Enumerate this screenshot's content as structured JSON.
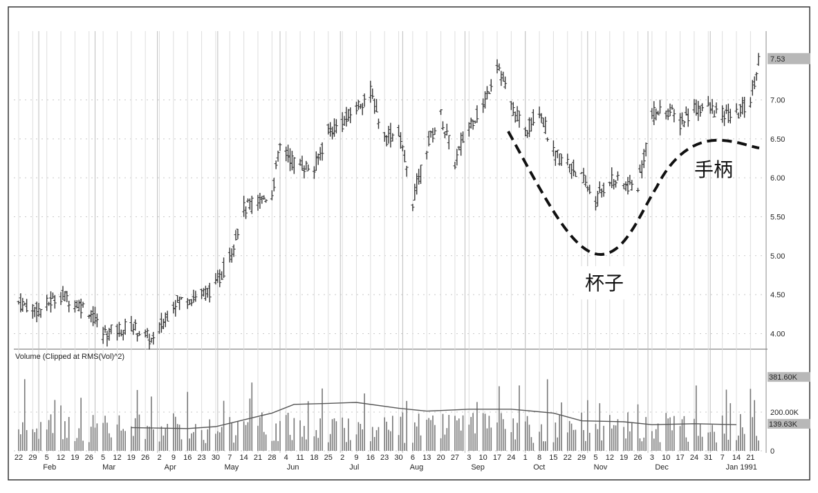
{
  "chart_data": [
    {
      "type": "ohlc",
      "title": "",
      "ylim": [
        3.8,
        7.75
      ],
      "y_ticks": [
        "4.00",
        "4.50",
        "5.00",
        "5.50",
        "6.00",
        "6.50",
        "7.00"
      ],
      "last_price_label": "7.53",
      "price_trend": [
        [
          "1990-01-22",
          4.4
        ],
        [
          "1990-02-01",
          4.3
        ],
        [
          "1990-02-12",
          4.5
        ],
        [
          "1990-02-26",
          4.3
        ],
        [
          "1990-03-05",
          4.0
        ],
        [
          "1990-03-19",
          4.1
        ],
        [
          "1990-03-30",
          3.9
        ],
        [
          "1990-04-09",
          4.4
        ],
        [
          "1990-04-23",
          4.5
        ],
        [
          "1990-04-30",
          4.6
        ],
        [
          "1990-05-07",
          5.0
        ],
        [
          "1990-05-14",
          5.6
        ],
        [
          "1990-05-28",
          5.8
        ],
        [
          "1990-06-01",
          6.4
        ],
        [
          "1990-06-08",
          6.2
        ],
        [
          "1990-06-18",
          6.1
        ],
        [
          "1990-06-25",
          6.6
        ],
        [
          "1990-07-02",
          6.7
        ],
        [
          "1990-07-16",
          7.1
        ],
        [
          "1990-07-23",
          6.5
        ],
        [
          "1990-07-30",
          6.6
        ],
        [
          "1990-08-06",
          5.7
        ],
        [
          "1990-08-13",
          6.4
        ],
        [
          "1990-08-20",
          6.8
        ],
        [
          "1990-08-27",
          6.2
        ],
        [
          "1990-09-03",
          6.7
        ],
        [
          "1990-09-10",
          6.9
        ],
        [
          "1990-09-17",
          7.5
        ],
        [
          "1990-09-24",
          6.9
        ],
        [
          "1990-10-01",
          6.6
        ],
        [
          "1990-10-08",
          6.9
        ],
        [
          "1990-10-15",
          6.3
        ],
        [
          "1990-10-22",
          6.2
        ],
        [
          "1990-10-29",
          6.0
        ],
        [
          "1990-11-05",
          5.7
        ],
        [
          "1990-11-12",
          6.0
        ],
        [
          "1990-11-19",
          5.9
        ],
        [
          "1990-11-26",
          5.9
        ],
        [
          "1990-12-03",
          6.8
        ],
        [
          "1990-12-10",
          6.9
        ],
        [
          "1990-12-17",
          6.7
        ],
        [
          "1990-12-24",
          6.9
        ],
        [
          "1990-12-31",
          6.9
        ],
        [
          "1991-01-07",
          6.8
        ],
        [
          "1991-01-14",
          6.8
        ],
        [
          "1991-01-21",
          7.0
        ],
        [
          "1991-01-25",
          7.53
        ]
      ],
      "annotations": {
        "cup": "杯子",
        "handle": "手柄"
      }
    },
    {
      "type": "bar",
      "title": "Volume (Clipped at RMS(Vol)^2)",
      "ylim": [
        0,
        400000
      ],
      "y_ticks": [
        "0",
        "200.00K"
      ],
      "last_volume_label": "381.60K",
      "average_label": "139.63K",
      "moving_average": [
        [
          "1990-03-19",
          120000
        ],
        [
          "1990-04-16",
          115000
        ],
        [
          "1990-04-30",
          125000
        ],
        [
          "1990-05-14",
          160000
        ],
        [
          "1990-05-28",
          195000
        ],
        [
          "1990-06-08",
          240000
        ],
        [
          "1990-06-25",
          245000
        ],
        [
          "1990-07-09",
          250000
        ],
        [
          "1990-07-30",
          220000
        ],
        [
          "1990-08-13",
          205000
        ],
        [
          "1990-09-03",
          215000
        ],
        [
          "1990-09-24",
          215000
        ],
        [
          "1990-10-15",
          195000
        ],
        [
          "1990-10-29",
          155000
        ],
        [
          "1990-11-19",
          150000
        ],
        [
          "1990-12-03",
          135000
        ],
        [
          "1990-12-24",
          140000
        ],
        [
          "1991-01-14",
          135000
        ]
      ]
    }
  ],
  "x_axis": {
    "day_labels": [
      "22",
      "29",
      "5",
      "12",
      "19",
      "26",
      "5",
      "12",
      "19",
      "26",
      "2",
      "9",
      "16",
      "23",
      "30",
      "7",
      "14",
      "21",
      "28",
      "4",
      "11",
      "18",
      "25",
      "2",
      "9",
      "16",
      "23",
      "30",
      "6",
      "13",
      "20",
      "27",
      "3",
      "10",
      "17",
      "24",
      "1",
      "8",
      "15",
      "22",
      "29",
      "5",
      "12",
      "19",
      "26",
      "3",
      "10",
      "17",
      "24",
      "31",
      "7",
      "14",
      "21"
    ],
    "month_labels": [
      "Feb",
      "Mar",
      "Apr",
      "May",
      "Jun",
      "Jul",
      "Aug",
      "Sep",
      "Oct",
      "Nov",
      "Dec",
      "Jan 1991"
    ]
  }
}
